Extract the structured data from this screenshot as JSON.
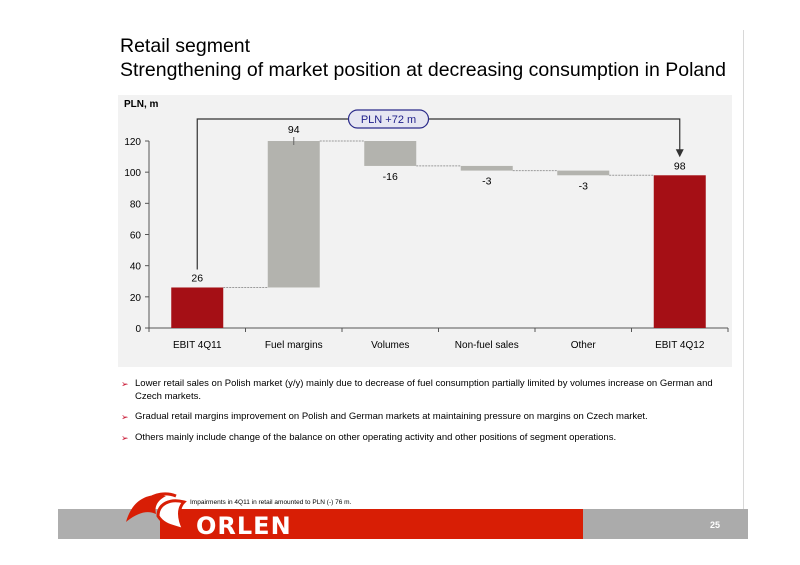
{
  "title": {
    "line1": "Retail segment",
    "line2": "Strengthening of market position at decreasing consumption in Poland"
  },
  "chart_data": {
    "type": "waterfall",
    "unit_label": "PLN, m",
    "categories": [
      "EBIT 4Q11",
      "Fuel margins",
      "Volumes",
      "Non-fuel sales",
      "Other",
      "EBIT 4Q12"
    ],
    "values": [
      26,
      94,
      -16,
      -3,
      -3,
      98
    ],
    "data_labels": [
      "26",
      "94",
      "-16",
      "-3",
      "-3",
      "98"
    ],
    "kinds": [
      "total",
      "delta",
      "delta",
      "delta",
      "delta",
      "total"
    ],
    "ylim": [
      0,
      120
    ],
    "yticks": [
      "0",
      "20",
      "40",
      "60",
      "80",
      "100",
      "120"
    ],
    "annotation": "PLN +72 m",
    "colors": {
      "total": "#a50f15",
      "delta": "#b3b3ae",
      "connector": "#9a9a9a"
    }
  },
  "bullets": [
    "Lower retail sales on Polish market (y/y) mainly due to decrease of fuel consumption partially limited by volumes increase on German and Czech markets.",
    "Gradual retail margins improvement on Polish and German markets at maintaining pressure on margins on Czech market.",
    " Others mainly include change of the balance on other operating activity and other positions of segment operations."
  ],
  "footer": {
    "footnote": "Impairments in 4Q11 in retail amounted to PLN (-) 76 m.",
    "brand": "ORLEN",
    "page_number": "25"
  }
}
